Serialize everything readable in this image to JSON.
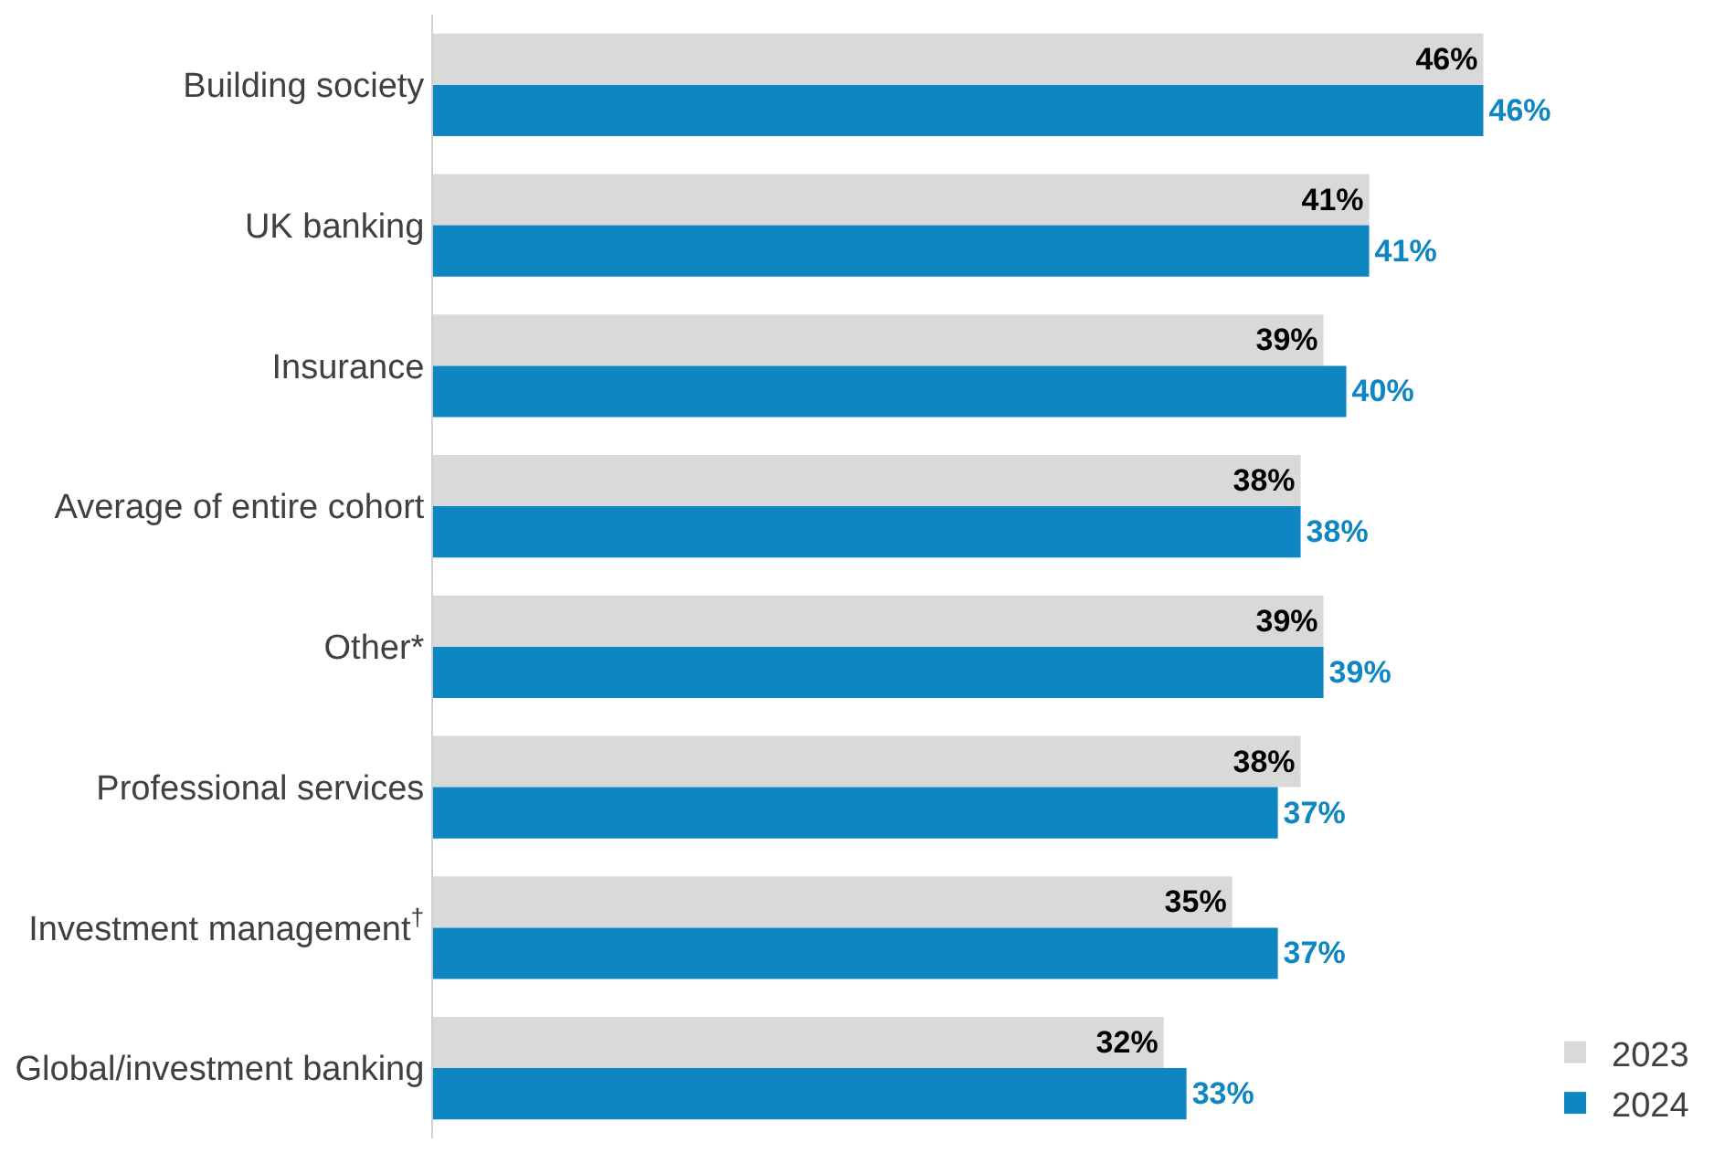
{
  "chart_data": {
    "type": "bar",
    "orientation": "horizontal",
    "categories": [
      "Building society",
      "UK banking",
      "Insurance",
      "Average of entire cohort",
      "Other*",
      "Professional services",
      "Investment management$^{†}$",
      "Global/investment banking"
    ],
    "series": [
      {
        "name": "2023",
        "color": "#d9d9d9",
        "values": [
          46,
          41,
          39,
          38,
          39,
          38,
          35,
          32
        ],
        "value_labels": [
          "46%",
          "41%",
          "39%",
          "38%",
          "39%",
          "38%",
          "35%",
          "32%"
        ]
      },
      {
        "name": "2024",
        "color": "#0e86c2",
        "values": [
          46,
          41,
          40,
          38,
          39,
          37,
          37,
          33
        ],
        "value_labels": [
          "46%",
          "41%",
          "40%",
          "38%",
          "39%",
          "37%",
          "37%",
          "33%"
        ]
      }
    ],
    "legend": "bottom right"
  }
}
